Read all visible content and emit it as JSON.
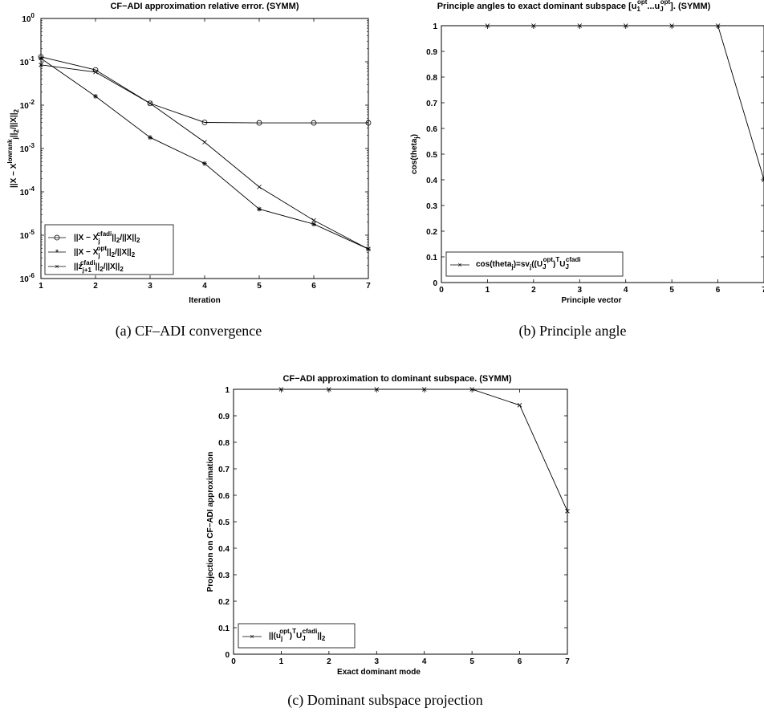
{
  "chart_data": [
    {
      "type": "line",
      "title": "CF−ADI approximation relative error.  (SYMM)",
      "xlabel": "Iteration",
      "ylabel": "||X − X^{lowrank_j}||_2/||X||_2",
      "yscale": "log",
      "xlim": [
        1,
        7
      ],
      "ylim": [
        1e-06,
        1
      ],
      "x_ticks": [
        "1",
        "2",
        "3",
        "4",
        "5",
        "6",
        "7"
      ],
      "y_ticks": [
        "10^-6",
        "10^-5",
        "10^-4",
        "10^-3",
        "10^-2",
        "10^-1",
        "10^0"
      ],
      "legend_position": "bottom-left",
      "x": [
        1,
        2,
        3,
        4,
        5,
        6,
        7
      ],
      "series": [
        {
          "name": "||X − X_j^{cfadi}||_2/||X||_2",
          "marker": "circle",
          "values": [
            0.13,
            0.065,
            0.011,
            0.004,
            0.0039,
            0.0039,
            0.0039
          ]
        },
        {
          "name": "||X − X_j^{opt}||_2/||X||_2",
          "marker": "asterisk",
          "values": [
            0.12,
            0.016,
            0.0018,
            0.00045,
            4e-05,
            1.8e-05,
            4.8e-06
          ]
        },
        {
          "name": "||z_{j+1}^{cfadi}||_2/||X||_2",
          "marker": "x",
          "values": [
            0.085,
            0.058,
            0.011,
            0.0014,
            0.00013,
            2.2e-05,
            4.8e-06
          ]
        }
      ],
      "caption": "(a) CF–ADI convergence"
    },
    {
      "type": "line",
      "title": "Principle angles to exact dominant subspace [u_1^{opt}...u_J^{opt}]. (SYMM)",
      "xlabel": "Principle vector",
      "ylabel": "cos(theta_j)",
      "xlim": [
        0,
        7
      ],
      "ylim": [
        0,
        1
      ],
      "x_ticks": [
        "0",
        "1",
        "2",
        "3",
        "4",
        "5",
        "6",
        "7"
      ],
      "y_ticks": [
        "0",
        "0.1",
        "0.2",
        "0.3",
        "0.4",
        "0.5",
        "0.6",
        "0.7",
        "0.8",
        "0.9",
        "1"
      ],
      "legend_position": "bottom-left",
      "x": [
        1,
        2,
        3,
        4,
        5,
        6,
        7
      ],
      "series": [
        {
          "name": "cos(theta_j)=sv_j((U_J^{opt})^T U_J^{cfadi}",
          "marker": "x",
          "values": [
            1,
            1,
            1,
            1,
            1,
            1,
            0.4
          ]
        }
      ],
      "caption": "(b) Principle angle"
    },
    {
      "type": "line",
      "title": "CF−ADI approximation to dominant subspace. (SYMM)",
      "xlabel": "Exact dominant mode",
      "ylabel": "Projection on CF−ADI approximation",
      "xlim": [
        0,
        7
      ],
      "ylim": [
        0,
        1
      ],
      "x_ticks": [
        "0",
        "1",
        "2",
        "3",
        "4",
        "5",
        "6",
        "7"
      ],
      "y_ticks": [
        "0",
        "0.1",
        "0.2",
        "0.3",
        "0.4",
        "0.5",
        "0.6",
        "0.7",
        "0.8",
        "0.9",
        "1"
      ],
      "legend_position": "bottom-left",
      "x": [
        1,
        2,
        3,
        4,
        5,
        6,
        7
      ],
      "series": [
        {
          "name": "||(u_j^{opt})^T U_J^{cfadi}||_2",
          "marker": "x",
          "values": [
            1,
            1,
            1,
            1,
            1,
            0.94,
            0.54
          ]
        }
      ],
      "caption": "(c) Dominant subspace projection"
    }
  ]
}
